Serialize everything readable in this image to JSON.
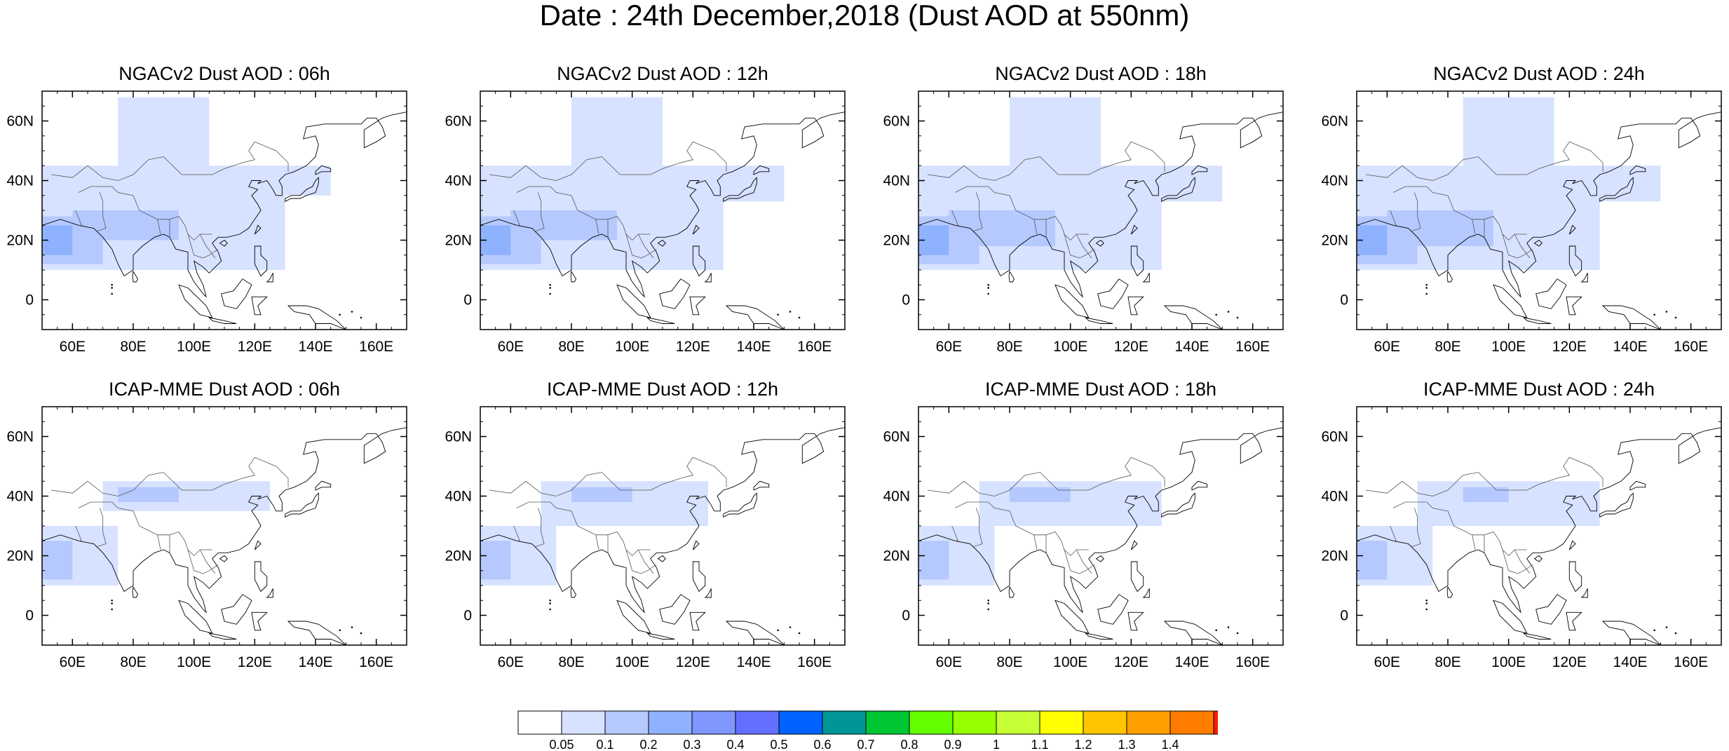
{
  "title": "Date : 24th December,2018 (Dust AOD at 550nm)",
  "axes": {
    "lat_ticks": [
      {
        "label": "60N",
        "value": 60
      },
      {
        "label": "40N",
        "value": 40
      },
      {
        "label": "20N",
        "value": 20
      },
      {
        "label": "0",
        "value": 0
      }
    ],
    "lon_ticks": [
      {
        "label": "60E",
        "value": 60
      },
      {
        "label": "80E",
        "value": 80
      },
      {
        "label": "100E",
        "value": 100
      },
      {
        "label": "120E",
        "value": 120
      },
      {
        "label": "140E",
        "value": 140
      },
      {
        "label": "160E",
        "value": 160
      }
    ],
    "lon_range": [
      50,
      170
    ],
    "lat_range": [
      -10,
      70
    ]
  },
  "panels": [
    {
      "id": "ngac-06",
      "title": "NGACv2 Dust AOD : 06h",
      "model": "ngac",
      "hour": 6
    },
    {
      "id": "ngac-12",
      "title": "NGACv2 Dust AOD : 12h",
      "model": "ngac",
      "hour": 12
    },
    {
      "id": "ngac-18",
      "title": "NGACv2 Dust AOD : 18h",
      "model": "ngac",
      "hour": 18
    },
    {
      "id": "ngac-24",
      "title": "NGACv2 Dust AOD : 24h",
      "model": "ngac",
      "hour": 24
    },
    {
      "id": "icap-06",
      "title": "ICAP-MME Dust AOD : 06h",
      "model": "icap",
      "hour": 6
    },
    {
      "id": "icap-12",
      "title": "ICAP-MME Dust AOD : 12h",
      "model": "icap",
      "hour": 12
    },
    {
      "id": "icap-18",
      "title": "ICAP-MME Dust AOD : 18h",
      "model": "icap",
      "hour": 18
    },
    {
      "id": "icap-24",
      "title": "ICAP-MME Dust AOD : 24h",
      "model": "icap",
      "hour": 24
    }
  ],
  "colorbar": {
    "labels": [
      "0.05",
      "0.1",
      "0.2",
      "0.3",
      "0.4",
      "0.5",
      "0.6",
      "0.7",
      "0.8",
      "0.9",
      "1",
      "1.1",
      "1.2",
      "1.3",
      "1.4"
    ],
    "colors": [
      "#ffffff",
      "#d6e2ff",
      "#b5c9ff",
      "#8fb2ff",
      "#7f96ff",
      "#6370ff",
      "#0063ff",
      "#009696",
      "#00c633",
      "#63ff00",
      "#96ff00",
      "#c6ff33",
      "#ffff00",
      "#ffc600",
      "#ffa000",
      "#ff7c00",
      "#ff1900"
    ]
  },
  "dust_fields": {
    "ngac": {
      "06": [
        {
          "lon": [
            50,
            70
          ],
          "lat": [
            12,
            28
          ],
          "level": 2
        },
        {
          "lon": [
            50,
            60
          ],
          "lat": [
            15,
            25
          ],
          "level": 3
        },
        {
          "lon": [
            60,
            95
          ],
          "lat": [
            20,
            30
          ],
          "level": 2
        },
        {
          "lon": [
            50,
            130
          ],
          "lat": [
            10,
            45
          ],
          "level": 1
        },
        {
          "lon": [
            75,
            105
          ],
          "lat": [
            45,
            68
          ],
          "level": 1
        },
        {
          "lon": [
            110,
            145
          ],
          "lat": [
            35,
            45
          ],
          "level": 1
        }
      ],
      "12": [
        {
          "lon": [
            50,
            70
          ],
          "lat": [
            12,
            28
          ],
          "level": 2
        },
        {
          "lon": [
            50,
            60
          ],
          "lat": [
            15,
            25
          ],
          "level": 3
        },
        {
          "lon": [
            60,
            95
          ],
          "lat": [
            20,
            30
          ],
          "level": 2
        },
        {
          "lon": [
            50,
            130
          ],
          "lat": [
            10,
            45
          ],
          "level": 1
        },
        {
          "lon": [
            80,
            110
          ],
          "lat": [
            45,
            68
          ],
          "level": 1
        },
        {
          "lon": [
            110,
            150
          ],
          "lat": [
            33,
            45
          ],
          "level": 1
        }
      ],
      "18": [
        {
          "lon": [
            50,
            70
          ],
          "lat": [
            12,
            28
          ],
          "level": 2
        },
        {
          "lon": [
            50,
            60
          ],
          "lat": [
            15,
            25
          ],
          "level": 3
        },
        {
          "lon": [
            60,
            95
          ],
          "lat": [
            18,
            30
          ],
          "level": 2
        },
        {
          "lon": [
            50,
            130
          ],
          "lat": [
            10,
            45
          ],
          "level": 1
        },
        {
          "lon": [
            80,
            110
          ],
          "lat": [
            45,
            68
          ],
          "level": 1
        },
        {
          "lon": [
            110,
            150
          ],
          "lat": [
            33,
            45
          ],
          "level": 1
        }
      ],
      "24": [
        {
          "lon": [
            50,
            70
          ],
          "lat": [
            12,
            28
          ],
          "level": 2
        },
        {
          "lon": [
            50,
            60
          ],
          "lat": [
            15,
            25
          ],
          "level": 3
        },
        {
          "lon": [
            60,
            95
          ],
          "lat": [
            18,
            30
          ],
          "level": 2
        },
        {
          "lon": [
            50,
            130
          ],
          "lat": [
            10,
            45
          ],
          "level": 1
        },
        {
          "lon": [
            85,
            115
          ],
          "lat": [
            45,
            68
          ],
          "level": 1
        },
        {
          "lon": [
            110,
            150
          ],
          "lat": [
            33,
            45
          ],
          "level": 1
        }
      ]
    },
    "icap": {
      "06": [
        {
          "lon": [
            50,
            60
          ],
          "lat": [
            12,
            25
          ],
          "level": 2
        },
        {
          "lon": [
            50,
            75
          ],
          "lat": [
            10,
            30
          ],
          "level": 1
        },
        {
          "lon": [
            75,
            95
          ],
          "lat": [
            38,
            43
          ],
          "level": 2
        },
        {
          "lon": [
            70,
            125
          ],
          "lat": [
            35,
            45
          ],
          "level": 1
        }
      ],
      "12": [
        {
          "lon": [
            50,
            60
          ],
          "lat": [
            12,
            25
          ],
          "level": 2
        },
        {
          "lon": [
            50,
            75
          ],
          "lat": [
            10,
            30
          ],
          "level": 1
        },
        {
          "lon": [
            80,
            100
          ],
          "lat": [
            38,
            43
          ],
          "level": 2
        },
        {
          "lon": [
            70,
            125
          ],
          "lat": [
            30,
            45
          ],
          "level": 1
        }
      ],
      "18": [
        {
          "lon": [
            50,
            60
          ],
          "lat": [
            12,
            25
          ],
          "level": 2
        },
        {
          "lon": [
            50,
            75
          ],
          "lat": [
            10,
            30
          ],
          "level": 1
        },
        {
          "lon": [
            80,
            100
          ],
          "lat": [
            38,
            43
          ],
          "level": 2
        },
        {
          "lon": [
            70,
            130
          ],
          "lat": [
            30,
            45
          ],
          "level": 1
        }
      ],
      "24": [
        {
          "lon": [
            50,
            60
          ],
          "lat": [
            12,
            25
          ],
          "level": 2
        },
        {
          "lon": [
            50,
            75
          ],
          "lat": [
            10,
            30
          ],
          "level": 1
        },
        {
          "lon": [
            85,
            100
          ],
          "lat": [
            38,
            43
          ],
          "level": 2
        },
        {
          "lon": [
            70,
            130
          ],
          "lat": [
            30,
            45
          ],
          "level": 1
        }
      ]
    }
  }
}
